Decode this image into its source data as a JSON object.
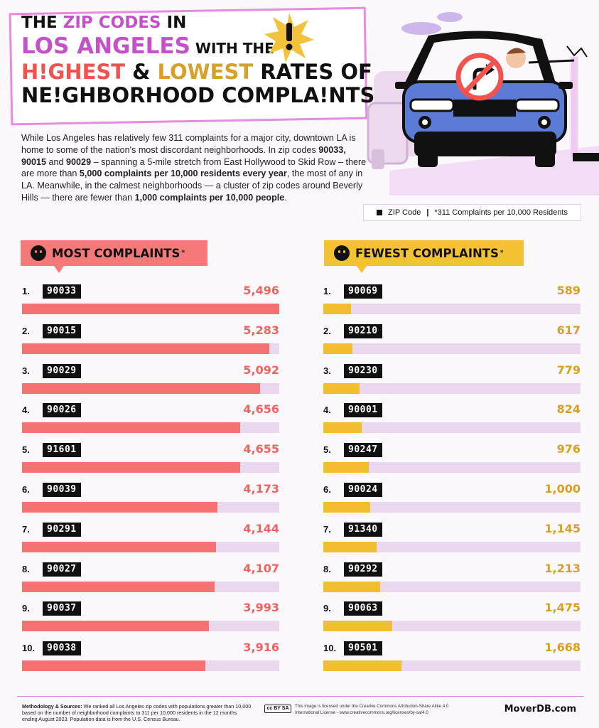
{
  "title": {
    "line1_a": "THE ",
    "line1_b": "ZIP CODES",
    "line1_c": " IN",
    "line2_a": "LOS ANGELES",
    "line2_b": " WITH THE",
    "line3_a": "H!GHEST",
    "line3_b": " & ",
    "line3_c": "LOWEST",
    "line3_d": " RATES OF",
    "line4": "NE!GHBORHOOD COMPLA!NTS"
  },
  "intro": {
    "p1": "While Los Angeles has relatively few 311 complaints for a major city, downtown LA is home to some of the nation's most discordant neighborhoods. In zip codes ",
    "b1": "90033",
    "p2": ", ",
    "b2": "90015",
    "p3": " and ",
    "b3": "90029",
    "p4": " – spanning a 5-mile stretch from East Hollywood to Skid Row – there are more than ",
    "b4": "5,000 complaints per 10,000 residents every year",
    "p5": ", the most of any in LA. Meanwhile, in the calmest neighborhoods — a cluster of zip codes around Beverly Hills — there are fewer than ",
    "b5": "1,000 complaints per 10,000 people",
    "p6": "."
  },
  "legend": {
    "zip_label": "ZIP Code",
    "separator": "|",
    "unit_label": "*311 Complaints per 10,000 Residents"
  },
  "most": {
    "header": "MOST COMPLAINTS",
    "asterisk": "*"
  },
  "fewest": {
    "header": "FEWEST COMPLAINTS",
    "asterisk": "*"
  },
  "chart_data": [
    {
      "type": "bar",
      "title": "MOST COMPLAINTS*",
      "orientation": "horizontal",
      "xlim": [
        0,
        5496
      ],
      "ranks": [
        "1.",
        "2.",
        "3.",
        "4.",
        "5.",
        "6.",
        "7.",
        "8.",
        "9.",
        "10."
      ],
      "categories": [
        "90033",
        "90015",
        "90029",
        "90026",
        "91601",
        "90039",
        "90291",
        "90027",
        "90037",
        "90038"
      ],
      "values": [
        5496,
        5283,
        5092,
        4656,
        4655,
        4173,
        4144,
        4107,
        3993,
        3916
      ],
      "value_labels": [
        "5,496",
        "5,283",
        "5,092",
        "4,656",
        "4,655",
        "4,173",
        "4,144",
        "4,107",
        "3,993",
        "3,916"
      ],
      "color": "#f57172",
      "track_color": "#ead8ef"
    },
    {
      "type": "bar",
      "title": "FEWEST COMPLAINTS*",
      "orientation": "horizontal",
      "xlim": [
        0,
        5496
      ],
      "ranks": [
        "1.",
        "2.",
        "3.",
        "4.",
        "5.",
        "6.",
        "7.",
        "8.",
        "9.",
        "10."
      ],
      "categories": [
        "90069",
        "90210",
        "90230",
        "90001",
        "90247",
        "90024",
        "91340",
        "90292",
        "90063",
        "90501"
      ],
      "values": [
        589,
        617,
        779,
        824,
        976,
        1000,
        1145,
        1213,
        1475,
        1668
      ],
      "value_labels": [
        "589",
        "617",
        "779",
        "824",
        "976",
        "1,000",
        "1,145",
        "1,213",
        "1,475",
        "1,668"
      ],
      "color": "#f0be2e",
      "track_color": "#ead8ef"
    }
  ],
  "footer": {
    "method_label": "Methodology & Sources:",
    "method_text": " We ranked all Los Angeles zip codes with populations greater than 10,000 based on the number of neighborhood complaints to 311 per 10,000 residents in the 12 months ending August 2023. Population data is from the U.S. Census Bureau.",
    "cc_badge": "cc BY SA",
    "license": "This image is licensed under the Creative Commons Attribution-Share Alike 4.0 International License - www.creativecommons.org/licenses/by-sa/4.0",
    "brand": "MoverDB.com"
  },
  "colors": {
    "pink": "#c451c8",
    "red": "#f2534e",
    "gold": "#d7a02a",
    "most_bar": "#f57172",
    "fewest_bar": "#f0be2e",
    "track": "#ead8ef",
    "car_blue": "#5b7bd6"
  },
  "icons": {
    "burst": "exclamation-burst-icon",
    "car": "car-illustration",
    "no_entry": "no-turn-sign-icon",
    "sad_face": "sad-face-icon",
    "happy_face": "happy-face-icon"
  }
}
